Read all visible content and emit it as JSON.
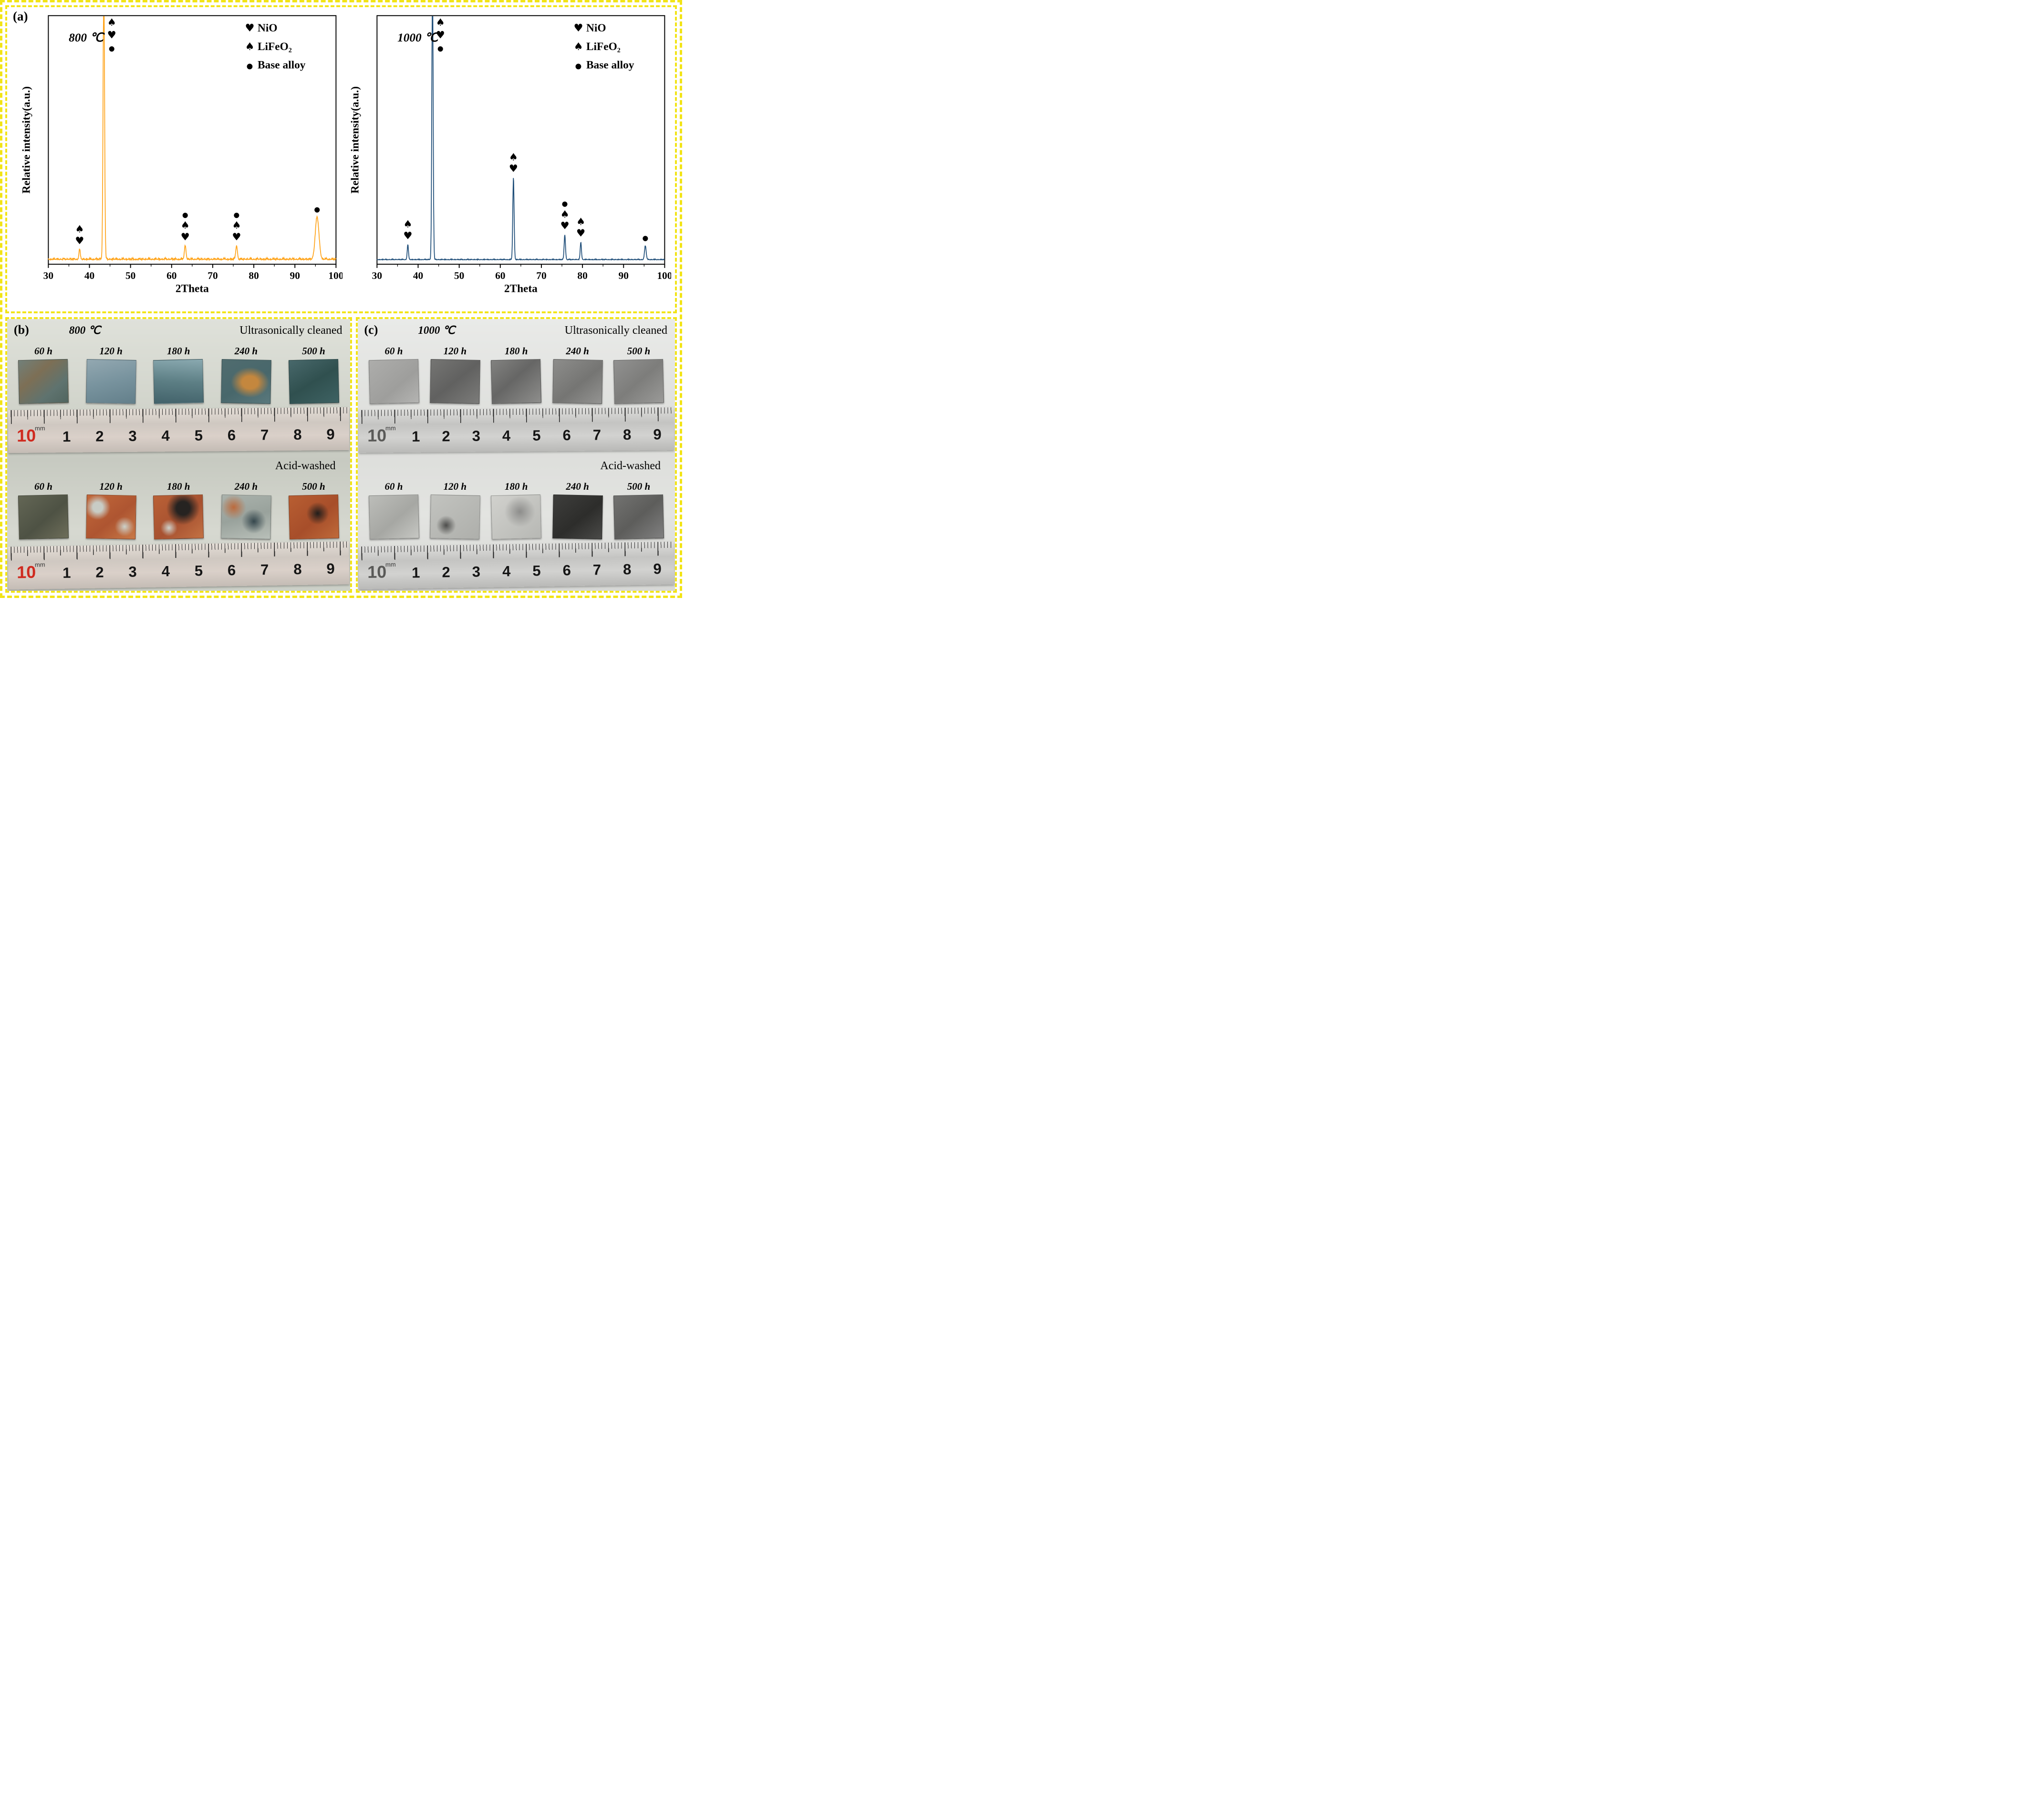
{
  "figure": {
    "border_color": "#f2e416",
    "background": "#ffffff"
  },
  "panel_a": {
    "label": "(a)"
  },
  "chart_data": [
    {
      "type": "line",
      "series_name": "XRD pattern 800 ℃",
      "temperature_label": "800 ℃",
      "line_color": "#FFA41B",
      "xlabel": "2Theta",
      "ylabel": "Relative intensity(a.u.)",
      "xlim": [
        30,
        100
      ],
      "x_ticks": [
        30,
        40,
        50,
        60,
        70,
        80,
        90,
        100
      ],
      "grid": false,
      "legend_position": "top-right",
      "noise_amp": 3.2,
      "legend": [
        {
          "symbol": "♥",
          "label": "NiO"
        },
        {
          "symbol": "♠",
          "label": "LiFeO₂"
        },
        {
          "symbol": "●",
          "label": "Base alloy"
        }
      ],
      "peaks": [
        {
          "two_theta": 37.6,
          "rel_height": 0.04,
          "sigma": 0.16,
          "markers": [
            "♠",
            "♥"
          ]
        },
        {
          "two_theta": 43.5,
          "rel_height": 1.15,
          "sigma": 0.18,
          "clipped": true,
          "markers": [
            "♠",
            "♥",
            "●"
          ]
        },
        {
          "two_theta": 63.3,
          "rel_height": 0.055,
          "sigma": 0.2,
          "markers": [
            "●",
            "♠",
            "♥"
          ]
        },
        {
          "two_theta": 75.8,
          "rel_height": 0.055,
          "sigma": 0.2,
          "markers": [
            "●",
            "♠",
            "♥"
          ]
        },
        {
          "two_theta": 95.4,
          "rel_height": 0.17,
          "sigma": 0.45,
          "markers": [
            "●"
          ]
        }
      ]
    },
    {
      "type": "line",
      "series_name": "XRD pattern 1000 ℃",
      "temperature_label": "1000 ℃",
      "line_color": "#1F4E79",
      "xlabel": "2Theta",
      "ylabel": "Relative intensity(a.u.)",
      "xlim": [
        30,
        100
      ],
      "x_ticks": [
        30,
        40,
        50,
        60,
        70,
        80,
        90,
        100
      ],
      "grid": false,
      "legend_position": "top-right",
      "noise_amp": 1.4,
      "legend": [
        {
          "symbol": "♥",
          "label": "NiO"
        },
        {
          "symbol": "♠",
          "label": "LiFeO₂"
        },
        {
          "symbol": "●",
          "label": "Base alloy"
        }
      ],
      "peaks": [
        {
          "two_theta": 37.5,
          "rel_height": 0.06,
          "sigma": 0.15,
          "markers": [
            "♠",
            "♥"
          ]
        },
        {
          "two_theta": 43.5,
          "rel_height": 1.15,
          "sigma": 0.16,
          "clipped": true,
          "markers": [
            "♠",
            "♥",
            "●"
          ]
        },
        {
          "two_theta": 63.2,
          "rel_height": 0.33,
          "sigma": 0.16,
          "markers": [
            "♠",
            "♥"
          ]
        },
        {
          "two_theta": 75.7,
          "rel_height": 0.1,
          "sigma": 0.16,
          "markers": [
            "●",
            "♠",
            "♥"
          ]
        },
        {
          "two_theta": 79.6,
          "rel_height": 0.07,
          "sigma": 0.15,
          "markers": [
            "♠",
            "♥"
          ]
        },
        {
          "two_theta": 95.3,
          "rel_height": 0.055,
          "sigma": 0.2,
          "markers": [
            "●"
          ]
        }
      ]
    }
  ],
  "panels": {
    "b": {
      "label": "(b)",
      "temperature": "800 ℃",
      "rows": [
        {
          "title": "Ultrasonically cleaned",
          "samples": [
            {
              "time": "60 h",
              "swatch": "linear-gradient(140deg,#71807a 0%,#7d6f55 35%,#5f736f 70%,#51655f 100%)"
            },
            {
              "time": "120 h",
              "swatch": "linear-gradient(165deg,#93a8b1 0%,#78939e 50%,#637f8a 100%)"
            },
            {
              "time": "180 h",
              "swatch": "linear-gradient(185deg,#8aa9b0 0%,#5d7f85 50%,#42626a 100%)"
            },
            {
              "time": "240 h",
              "swatch": "radial-gradient(ellipse at 58% 52%,#c4873e 0%,#c4873e 20%,rgba(196,135,62,0) 48%),linear-gradient(150deg,#506c6f 0%,#48676b 55%,#5a797d 100%)"
            },
            {
              "time": "500 h",
              "swatch": "linear-gradient(150deg,#48686b 0%,#30504f 50%,#3e6263 100%)"
            }
          ],
          "ruler": {
            "unit": "mm",
            "numbers": [
              "10",
              "1",
              "2",
              "3",
              "4",
              "5",
              "6",
              "7",
              "8",
              "9"
            ],
            "first_color": "#cf2a1f"
          }
        },
        {
          "title": "Acid-washed",
          "samples": [
            {
              "time": "60 h",
              "swatch": "linear-gradient(140deg,#636655 0%,#4e5244 55%,#6e6e5a 100%)"
            },
            {
              "time": "120 h",
              "swatch": "radial-gradient(circle at 22% 28%,#c8ccc5 0%,#c8ccc5 10%,rgba(200,204,197,0) 26%),radial-gradient(circle at 78% 72%,#ccd1ca 0%,rgba(204,209,202,0) 20%),linear-gradient(140deg,#c2683a 0%,#ae5531 55%,#c87947 100%)"
            },
            {
              "time": "180 h",
              "swatch": "radial-gradient(circle at 60% 30%,#262321 0%,#262321 16%,rgba(38,35,33,0) 40%),radial-gradient(circle at 30% 75%,#cfd3cc 0%,rgba(207,211,204,0) 18%),linear-gradient(140deg,#ba6136 0%,#a75130 55%,#c37244 100%)"
            },
            {
              "time": "240 h",
              "swatch": "radial-gradient(circle at 66% 60%,#35474d 0%,rgba(53,71,77,0) 30%),radial-gradient(circle at 24% 28%,#bc6a3c 0%,rgba(188,106,60,0) 26%),linear-gradient(165deg,#aab2ac 0%,#99a29c 50%,#b9c0b9 100%)"
            },
            {
              "time": "500 h",
              "swatch": "radial-gradient(circle at 58% 42%,#201e1c 0%,rgba(32,30,28,0) 30%),linear-gradient(140deg,#b85e32 0%,#a74e2a 55%,#bf6a3a 100%)"
            }
          ],
          "ruler": {
            "unit": "mm",
            "numbers": [
              "10",
              "1",
              "2",
              "3",
              "4",
              "5",
              "6",
              "7",
              "8",
              "9"
            ],
            "first_color": "#cf2a1f"
          }
        }
      ]
    },
    "c": {
      "label": "(c)",
      "temperature": "1000 ℃",
      "rows": [
        {
          "title": "Ultrasonically cleaned",
          "samples": [
            {
              "time": "60 h",
              "swatch": "linear-gradient(140deg,#adadab 0%,#9e9e9c 60%,#b4b4b2 100%)"
            },
            {
              "time": "120 h",
              "swatch": "linear-gradient(140deg,#757573 0%,#616160 50%,#7c7c7a 100%)"
            },
            {
              "time": "180 h",
              "swatch": "linear-gradient(140deg,#828280 0%,#666665 45%,#8e8e8c 100%)"
            },
            {
              "time": "240 h",
              "swatch": "linear-gradient(140deg,#8d8d8b 0%,#757573 55%,#949492 100%)"
            },
            {
              "time": "500 h",
              "swatch": "linear-gradient(140deg,#919190 0%,#7d7d7b 50%,#9a9a98 100%)"
            }
          ],
          "ruler": {
            "unit": "mm",
            "numbers": [
              "10",
              "1",
              "2",
              "3",
              "4",
              "5",
              "6",
              "7",
              "8",
              "9"
            ],
            "first_color": "#5a5a58"
          }
        },
        {
          "title": "Acid-washed",
          "samples": [
            {
              "time": "60 h",
              "swatch": "linear-gradient(140deg,#bcbdb9 0%,#a6a7a3 55%,#c6c7c3 100%)"
            },
            {
              "time": "120 h",
              "swatch": "radial-gradient(circle at 32% 70%,#4d4d4b 0%,rgba(77,77,75,0) 22%),linear-gradient(140deg,#c2c3bf 0%,#aeafab 100%)"
            },
            {
              "time": "180 h",
              "swatch": "radial-gradient(circle at 58% 38%,#8d8d8b 0%,rgba(141,141,139,0) 40%),linear-gradient(140deg,#d1d1cd 0%,#b7b8b4 100%)"
            },
            {
              "time": "240 h",
              "swatch": "linear-gradient(140deg,#3e3e3c 0%,#2d2d2b 55%,#4a4a48 100%)"
            },
            {
              "time": "500 h",
              "swatch": "linear-gradient(140deg,#727270 0%,#5d5d5b 50%,#808080 100%)"
            }
          ],
          "ruler": {
            "unit": "mm",
            "numbers": [
              "10",
              "1",
              "2",
              "3",
              "4",
              "5",
              "6",
              "7",
              "8",
              "9"
            ],
            "first_color": "#5a5a58"
          }
        }
      ]
    }
  }
}
